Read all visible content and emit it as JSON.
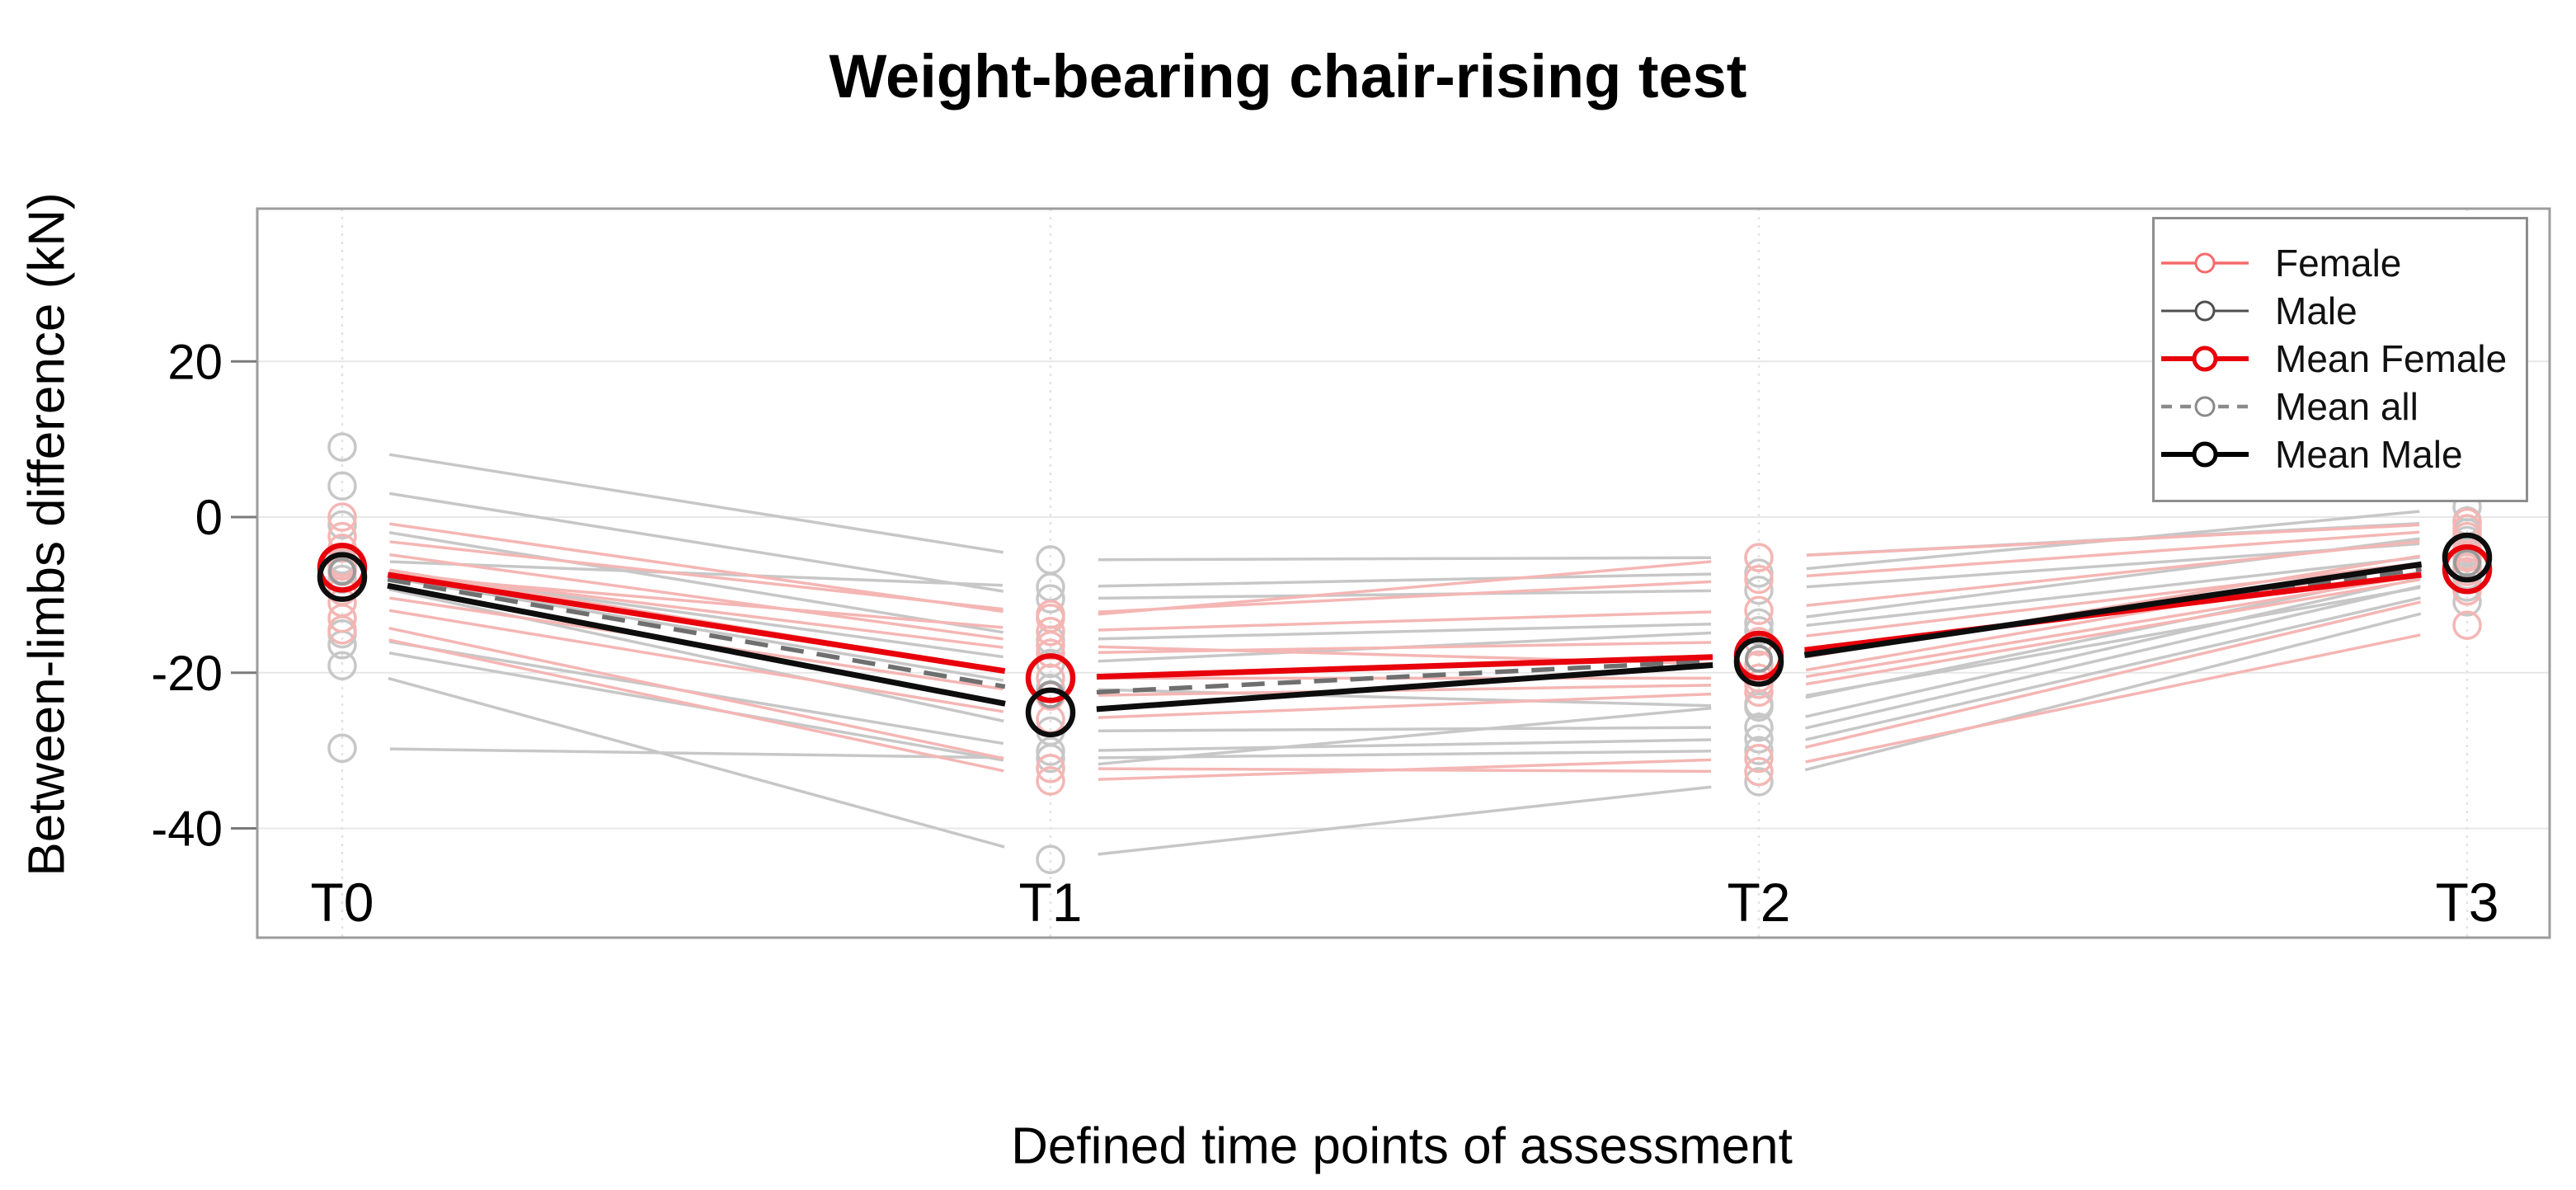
{
  "chart_data": {
    "type": "line",
    "title": "Weight-bearing chair-rising test",
    "xlabel": "Defined time points of assessment",
    "ylabel": "Between-limbs difference (kN)",
    "categories": [
      "T0",
      "T1",
      "T2",
      "T3"
    ],
    "y_ticks": [
      20,
      0,
      -20,
      -40
    ],
    "y_tick_labels": [
      "20",
      "0",
      "-20",
      "-40"
    ],
    "ylim": [
      -54,
      40
    ],
    "grid": true,
    "legend_position": "top-right",
    "groups": {
      "female": {
        "label": "Female",
        "line_color": "#f4b6b4"
      },
      "male": {
        "label": "Male",
        "line_color": "#c7c7c7"
      }
    },
    "means": [
      {
        "name": "Mean all",
        "color": "#6f6f6f",
        "marker_color": "#9a9a9a",
        "style": "dashed",
        "values": [
          -7.0,
          -22.8,
          -18.2,
          -5.9
        ]
      },
      {
        "name": "Mean Female",
        "color": "#e8000b",
        "marker_color": "#e8000b",
        "style": "solid",
        "values": [
          -6.5,
          -20.7,
          -17.8,
          -6.7
        ]
      },
      {
        "name": "Mean Male",
        "color": "#0d0d0d",
        "marker_color": "#0d0d0d",
        "style": "solid",
        "values": [
          -7.7,
          -25.1,
          -18.6,
          -5.2
        ]
      }
    ],
    "subjects": [
      {
        "group": "male",
        "values": [
          9,
          -5.5,
          -5.2,
          -0.5
        ]
      },
      {
        "group": "male",
        "values": [
          4,
          -10.5,
          -9.4,
          -3
        ]
      },
      {
        "group": "male",
        "values": [
          -1,
          -15.8,
          -13.6,
          -2
        ]
      },
      {
        "group": "male",
        "values": [
          -6.2,
          -18.8,
          -14.6,
          -4.5
        ]
      },
      {
        "group": "male",
        "values": [
          -6.8,
          -22,
          -24.4,
          -5.8
        ]
      },
      {
        "group": "male",
        "values": [
          -8,
          -27.5,
          -27,
          -6.5
        ]
      },
      {
        "group": "male",
        "values": [
          -15,
          -30.1,
          -28.5,
          -7.5
        ]
      },
      {
        "group": "male",
        "values": [
          -19.1,
          -44,
          -34,
          -10.9
        ]
      },
      {
        "group": "male",
        "values": [
          -29.7,
          -31,
          -30,
          -9
        ]
      },
      {
        "group": "male",
        "values": [
          -16.4,
          -32.3,
          -24,
          -8
        ]
      },
      {
        "group": "male",
        "values": [
          -5.5,
          -9,
          -7.2,
          1.3
        ]
      },
      {
        "group": "female",
        "values": [
          0,
          -13,
          -5.2,
          -0.7
        ]
      },
      {
        "group": "female",
        "values": [
          -7,
          -14.7,
          -12,
          -2.5
        ]
      },
      {
        "group": "female",
        "values": [
          -5.8,
          -20.7,
          -20.7,
          -5
        ]
      },
      {
        "group": "female",
        "values": [
          -9.5,
          -23,
          -21.5,
          -6.5
        ]
      },
      {
        "group": "female",
        "values": [
          -13,
          -32.3,
          -32.7,
          -13.9
        ]
      },
      {
        "group": "female",
        "values": [
          -14.5,
          -33.9,
          -31,
          -9.5
        ]
      },
      {
        "group": "female",
        "values": [
          -2.5,
          -12.5,
          -8,
          -1.5
        ]
      },
      {
        "group": "female",
        "values": [
          -11,
          -26,
          -22.5,
          -7
        ]
      },
      {
        "group": "female",
        "values": [
          -6.3,
          -17.5,
          -16,
          -5.2
        ]
      },
      {
        "group": "female",
        "values": [
          -4,
          -16.5,
          -19,
          -4
        ]
      }
    ]
  },
  "legend": {
    "entries": [
      {
        "label": "Female",
        "color": "#f56a6a",
        "line_width": 3.5,
        "dashed": false,
        "marker_radius": 11,
        "marker_stroke": 3
      },
      {
        "label": "Male",
        "color": "#4f4f4f",
        "line_width": 3,
        "dashed": false,
        "marker_radius": 11,
        "marker_stroke": 3
      },
      {
        "label": "Mean Female",
        "color": "#e8000b",
        "line_width": 6,
        "dashed": false,
        "marker_radius": 13,
        "marker_stroke": 5
      },
      {
        "label": "Mean all",
        "color": "#8a8a8a",
        "line_width": 4.5,
        "dashed": true,
        "marker_radius": 11,
        "marker_stroke": 3
      },
      {
        "label": "Mean Male",
        "color": "#000000",
        "line_width": 6,
        "dashed": false,
        "marker_radius": 13,
        "marker_stroke": 5
      }
    ]
  }
}
